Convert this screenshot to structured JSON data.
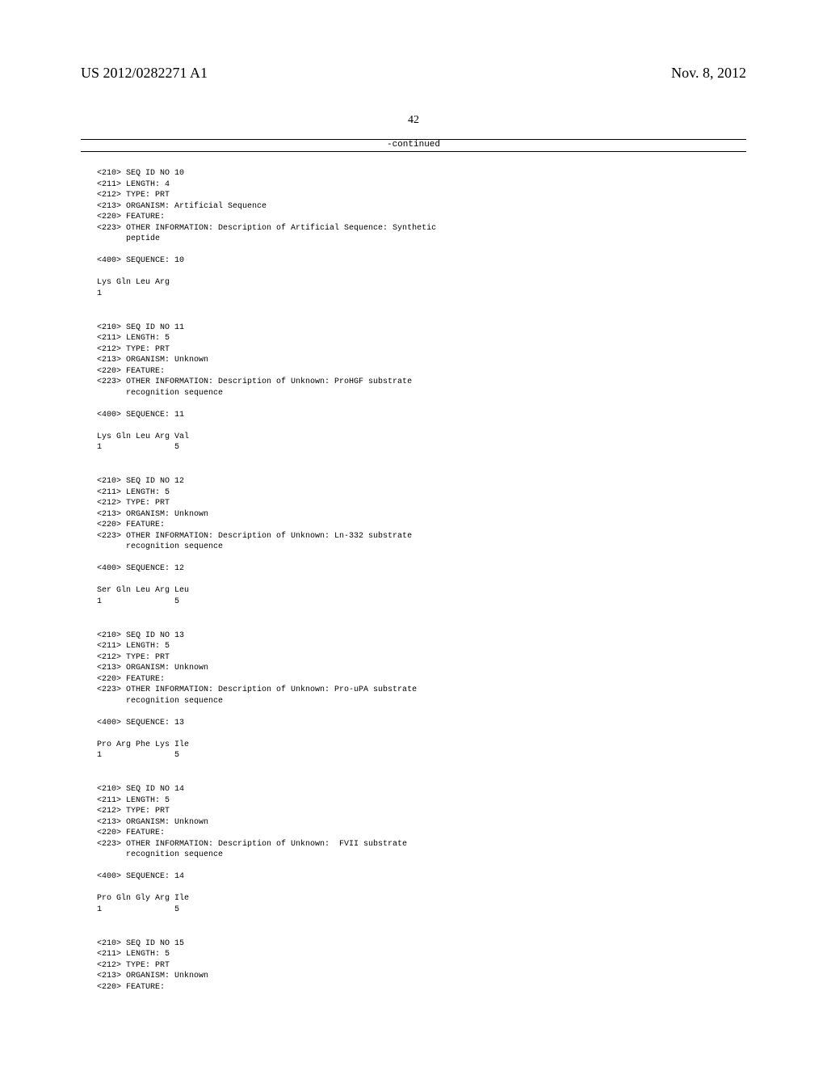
{
  "header": {
    "pub_number": "US 2012/0282271 A1",
    "pub_date": "Nov. 8, 2012"
  },
  "page_number": "42",
  "continued_label": "-continued",
  "sequences": [
    {
      "lines": [
        "<210> SEQ ID NO 10",
        "<211> LENGTH: 4",
        "<212> TYPE: PRT",
        "<213> ORGANISM: Artificial Sequence",
        "<220> FEATURE:",
        "<223> OTHER INFORMATION: Description of Artificial Sequence: Synthetic",
        "      peptide",
        "",
        "<400> SEQUENCE: 10",
        "",
        "Lys Gln Leu Arg",
        "1"
      ]
    },
    {
      "lines": [
        "<210> SEQ ID NO 11",
        "<211> LENGTH: 5",
        "<212> TYPE: PRT",
        "<213> ORGANISM: Unknown",
        "<220> FEATURE:",
        "<223> OTHER INFORMATION: Description of Unknown: ProHGF substrate",
        "      recognition sequence",
        "",
        "<400> SEQUENCE: 11",
        "",
        "Lys Gln Leu Arg Val",
        "1               5"
      ]
    },
    {
      "lines": [
        "<210> SEQ ID NO 12",
        "<211> LENGTH: 5",
        "<212> TYPE: PRT",
        "<213> ORGANISM: Unknown",
        "<220> FEATURE:",
        "<223> OTHER INFORMATION: Description of Unknown: Ln-332 substrate",
        "      recognition sequence",
        "",
        "<400> SEQUENCE: 12",
        "",
        "Ser Gln Leu Arg Leu",
        "1               5"
      ]
    },
    {
      "lines": [
        "<210> SEQ ID NO 13",
        "<211> LENGTH: 5",
        "<212> TYPE: PRT",
        "<213> ORGANISM: Unknown",
        "<220> FEATURE:",
        "<223> OTHER INFORMATION: Description of Unknown: Pro-uPA substrate",
        "      recognition sequence",
        "",
        "<400> SEQUENCE: 13",
        "",
        "Pro Arg Phe Lys Ile",
        "1               5"
      ]
    },
    {
      "lines": [
        "<210> SEQ ID NO 14",
        "<211> LENGTH: 5",
        "<212> TYPE: PRT",
        "<213> ORGANISM: Unknown",
        "<220> FEATURE:",
        "<223> OTHER INFORMATION: Description of Unknown:  FVII substrate",
        "      recognition sequence",
        "",
        "<400> SEQUENCE: 14",
        "",
        "Pro Gln Gly Arg Ile",
        "1               5"
      ]
    },
    {
      "lines": [
        "<210> SEQ ID NO 15",
        "<211> LENGTH: 5",
        "<212> TYPE: PRT",
        "<213> ORGANISM: Unknown",
        "<220> FEATURE:"
      ]
    }
  ]
}
